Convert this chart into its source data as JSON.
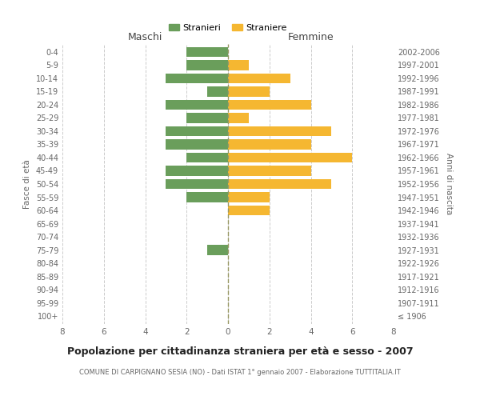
{
  "age_groups": [
    "100+",
    "95-99",
    "90-94",
    "85-89",
    "80-84",
    "75-79",
    "70-74",
    "65-69",
    "60-64",
    "55-59",
    "50-54",
    "45-49",
    "40-44",
    "35-39",
    "30-34",
    "25-29",
    "20-24",
    "15-19",
    "10-14",
    "5-9",
    "0-4"
  ],
  "birth_years": [
    "≤ 1906",
    "1907-1911",
    "1912-1916",
    "1917-1921",
    "1922-1926",
    "1927-1931",
    "1932-1936",
    "1937-1941",
    "1942-1946",
    "1947-1951",
    "1952-1956",
    "1957-1961",
    "1962-1966",
    "1967-1971",
    "1972-1976",
    "1977-1981",
    "1982-1986",
    "1987-1991",
    "1992-1996",
    "1997-2001",
    "2002-2006"
  ],
  "males": [
    0,
    0,
    0,
    0,
    0,
    1,
    0,
    0,
    0,
    2,
    3,
    3,
    2,
    3,
    3,
    2,
    3,
    1,
    3,
    2,
    2
  ],
  "females": [
    0,
    0,
    0,
    0,
    0,
    0,
    0,
    0,
    2,
    2,
    5,
    4,
    6,
    4,
    5,
    1,
    4,
    2,
    3,
    1,
    0
  ],
  "male_color": "#6a9e5b",
  "female_color": "#f5b731",
  "grid_color": "#cccccc",
  "title": "Popolazione per cittadinanza straniera per età e sesso - 2007",
  "subtitle": "COMUNE DI CARPIGNANO SESIA (NO) - Dati ISTAT 1° gennaio 2007 - Elaborazione TUTTITALIA.IT",
  "left_label": "Maschi",
  "right_label": "Femmine",
  "y_label": "Fasce di età",
  "right_y_label": "Anni di nascita",
  "legend_male": "Stranieri",
  "legend_female": "Straniere",
  "xlim": 8,
  "bar_height": 0.75
}
